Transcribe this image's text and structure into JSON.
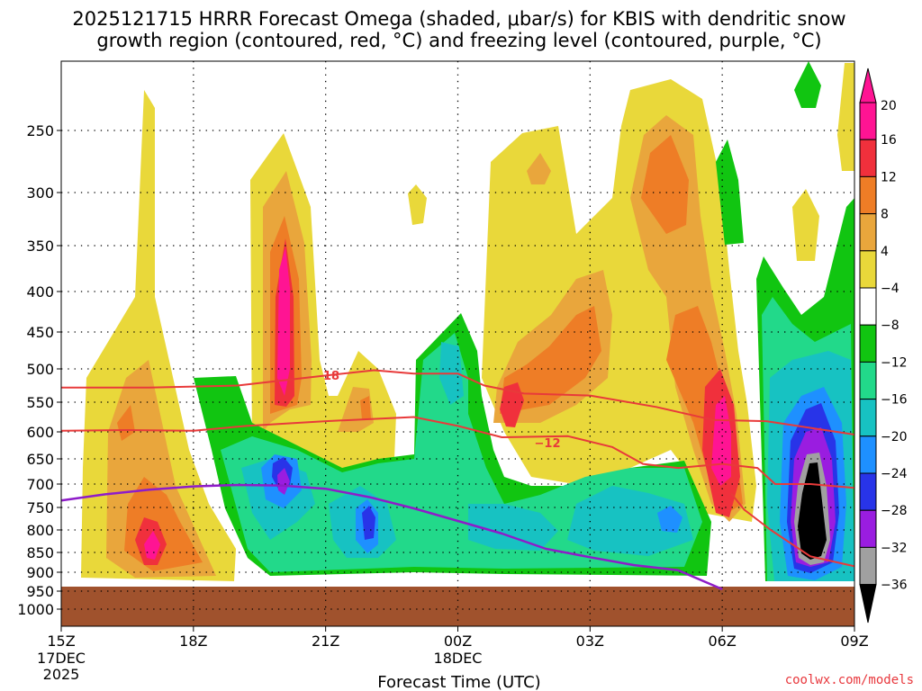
{
  "chart_data": {
    "type": "heatmap",
    "title_line1": "2025121715 HRRR Forecast Omega (shaded, μbar/s) for KBIS with dendritic snow",
    "title_line2": "growth region (contoured, red, °C) and freezing level (contoured, purple, °C)",
    "xlabel": "Forecast Time (UTC)",
    "credit": "coolwx.com/models",
    "x_hours": [
      0,
      3,
      6,
      9,
      12,
      15,
      18
    ],
    "x_ticks": [
      {
        "hour": 0,
        "label": "15Z",
        "sub1": "17DEC",
        "sub2": "2025"
      },
      {
        "hour": 3,
        "label": "18Z",
        "sub1": "",
        "sub2": ""
      },
      {
        "hour": 6,
        "label": "21Z",
        "sub1": "",
        "sub2": ""
      },
      {
        "hour": 9,
        "label": "00Z",
        "sub1": "18DEC",
        "sub2": ""
      },
      {
        "hour": 12,
        "label": "03Z",
        "sub1": "",
        "sub2": ""
      },
      {
        "hour": 15,
        "label": "06Z",
        "sub1": "",
        "sub2": ""
      },
      {
        "hour": 18,
        "label": "09Z",
        "sub1": "",
        "sub2": ""
      }
    ],
    "y_levels_hpa": [
      250,
      300,
      350,
      400,
      450,
      500,
      550,
      600,
      650,
      700,
      750,
      800,
      850,
      900,
      950,
      1000
    ],
    "colorbar_labels": [
      "20",
      "16",
      "12",
      "8",
      "4",
      "−4",
      "−8",
      "−12",
      "−16",
      "−20",
      "−24",
      "−28",
      "−32",
      "−36"
    ],
    "colorbar_colors": [
      "#ff1493",
      "#f0303c",
      "#ee7d26",
      "#e9a63c",
      "#e9d83a",
      "#ffffff",
      "#11c511",
      "#22d98a",
      "#17c2c2",
      "#1e90ff",
      "#2834e8",
      "#9a1de0",
      "#a0a0a0",
      "#000000"
    ],
    "contour_labels": [
      "18",
      "−12"
    ],
    "freezing_level": {
      "name": "freezing level",
      "color": "#8e1cc9",
      "hours": [
        0,
        1,
        2,
        3,
        4,
        5,
        6,
        7,
        8,
        9,
        10,
        11,
        12,
        13,
        14,
        15
      ],
      "pressure_hpa": [
        735,
        722,
        712,
        705,
        702,
        703,
        710,
        728,
        752,
        780,
        808,
        842,
        862,
        882,
        895,
        945
      ]
    },
    "dgz_upper": {
      "name": "-18 C isotherm",
      "color": "#e83a3a",
      "hours": [
        0,
        2,
        4,
        6,
        7.1,
        8,
        9,
        9.6,
        10.5,
        12,
        13.5,
        14.8,
        16,
        18
      ],
      "pressure_hpa": [
        528,
        528,
        525,
        510,
        502,
        507,
        507,
        525,
        537,
        540,
        558,
        580,
        582,
        605
      ]
    },
    "dgz_lower": {
      "name": "-12 C isotherm",
      "color": "#e83a3a",
      "hours": [
        0,
        1.5,
        3,
        4.2,
        6,
        8,
        9,
        10,
        11.5,
        12.5,
        13.2,
        14,
        15,
        15.8,
        16.2,
        17,
        18
      ],
      "pressure_hpa": [
        598,
        597,
        598,
        590,
        582,
        575,
        590,
        610,
        608,
        628,
        660,
        668,
        660,
        668,
        700,
        700,
        708
      ]
    },
    "dgz_lower_branch": {
      "name": "-12 C isotherm (low-level)",
      "color": "#e83a3a",
      "hours": [
        15.2,
        15.5,
        16.1,
        17,
        18
      ],
      "pressure_hpa": [
        720,
        755,
        800,
        860,
        885
      ]
    }
  }
}
